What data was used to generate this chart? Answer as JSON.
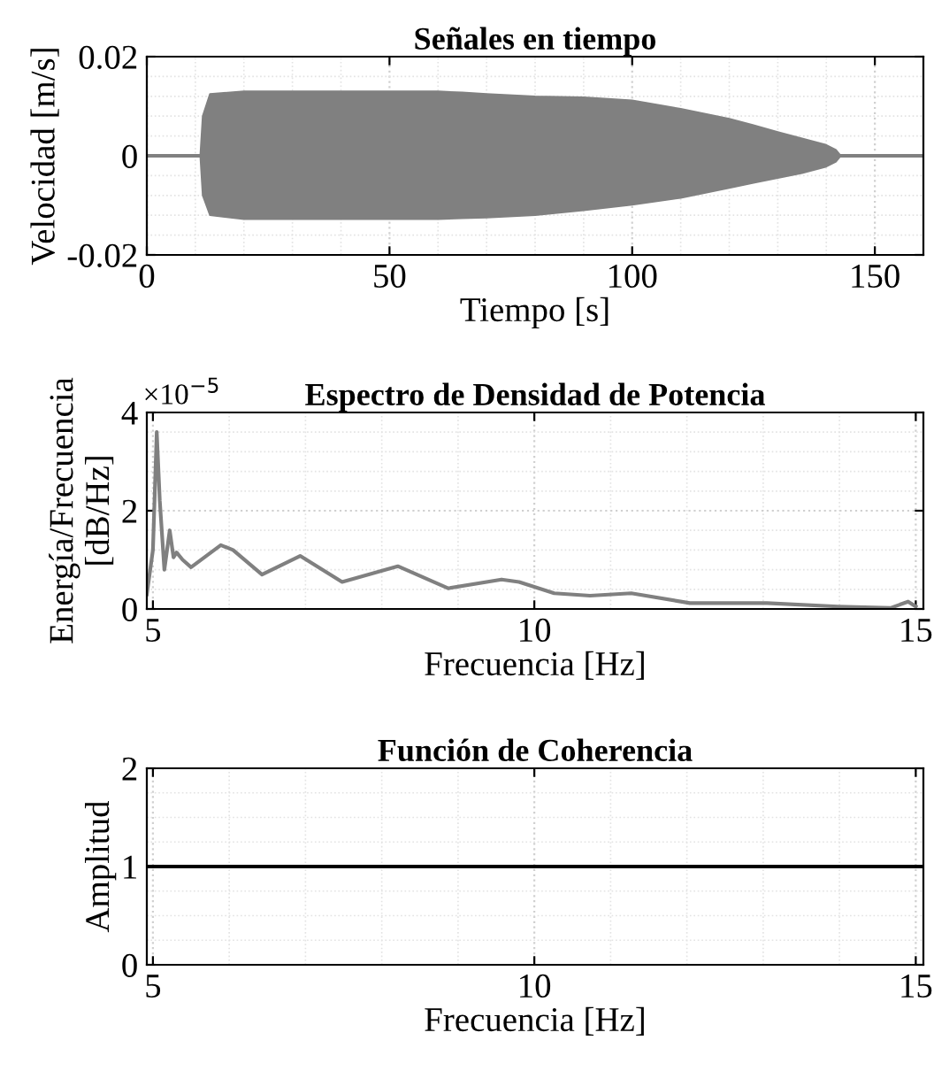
{
  "chart_data": [
    {
      "type": "line",
      "title": "Señales en tiempo",
      "xlabel": "Tiempo [s]",
      "ylabel": "Velocidad [m/s]",
      "xlim": [
        0,
        160
      ],
      "xticks": [
        0,
        50,
        100,
        150
      ],
      "ylim": [
        -0.02,
        0.02
      ],
      "yticks": [
        {
          "value": -0.02,
          "label": "-0.02"
        },
        0,
        0.02
      ],
      "grid": true,
      "legend": false,
      "x": [
        0,
        11,
        11.5,
        13,
        20,
        30,
        40,
        50,
        60,
        65,
        70,
        80,
        90,
        100,
        110,
        120,
        125,
        130,
        135,
        140,
        142,
        143,
        160
      ],
      "series": [
        {
          "color": "#808080",
          "values": [
            0,
            0,
            0,
            0,
            0,
            0,
            0,
            0,
            0,
            0,
            0,
            0,
            0,
            0,
            0,
            0,
            0,
            0,
            0,
            0,
            0,
            0,
            0
          ],
          "upper": [
            0,
            0,
            0.008,
            0.0125,
            0.013,
            0.013,
            0.013,
            0.013,
            0.013,
            0.0128,
            0.0125,
            0.012,
            0.0118,
            0.0112,
            0.0095,
            0.0075,
            0.0062,
            0.0048,
            0.0035,
            0.0022,
            0.0012,
            0,
            0
          ],
          "lower": [
            0,
            0,
            -0.008,
            -0.012,
            -0.0128,
            -0.0128,
            -0.0128,
            -0.0128,
            -0.0128,
            -0.0126,
            -0.0125,
            -0.012,
            -0.011,
            -0.0099,
            -0.0085,
            -0.0065,
            -0.0055,
            -0.0045,
            -0.0035,
            -0.0022,
            -0.0012,
            0,
            0
          ]
        }
      ]
    },
    {
      "type": "line",
      "title": "Espectro de Densidad de Potencia",
      "xlabel": "Frecuencia [Hz]",
      "ylabel": "Energía/Frecuencia\n[dB/Hz]",
      "annotations": [
        "×10$^{−5}$"
      ],
      "xlim": [
        4.92,
        15.1
      ],
      "xticks": [
        5,
        10,
        15
      ],
      "ylim": [
        0,
        4
      ],
      "yticks": [
        0,
        2,
        4
      ],
      "grid": true,
      "legend": false,
      "series": [
        {
          "color": "#808080",
          "x": [
            4.92,
            5.0,
            5.05,
            5.09,
            5.15,
            5.22,
            5.27,
            5.31,
            5.39,
            5.5,
            5.89,
            6.05,
            6.43,
            6.93,
            7.48,
            8.21,
            8.87,
            9.57,
            9.8,
            10.26,
            10.73,
            11.27,
            12.04,
            13.05,
            13.98,
            14.67,
            14.9,
            15.0
          ],
          "values": [
            0.3,
            1.2,
            3.6,
            2.2,
            0.8,
            1.6,
            1.05,
            1.15,
            1.0,
            0.85,
            1.3,
            1.2,
            0.7,
            1.08,
            0.55,
            0.87,
            0.42,
            0.6,
            0.55,
            0.32,
            0.27,
            0.32,
            0.12,
            0.12,
            0.05,
            0.02,
            0.15,
            0.05
          ]
        }
      ]
    },
    {
      "type": "line",
      "title": "Función de Coherencia",
      "xlabel": "Frecuencia [Hz]",
      "ylabel": "Amplitud",
      "xlim": [
        4.92,
        15.1
      ],
      "xticks": [
        5,
        10,
        15
      ],
      "ylim": [
        0,
        2
      ],
      "yticks": [
        0,
        1,
        2
      ],
      "grid": true,
      "legend": false,
      "series": [
        {
          "color": "#000000",
          "x": [
            4.92,
            15.1
          ],
          "values": [
            1,
            1
          ]
        }
      ]
    }
  ]
}
